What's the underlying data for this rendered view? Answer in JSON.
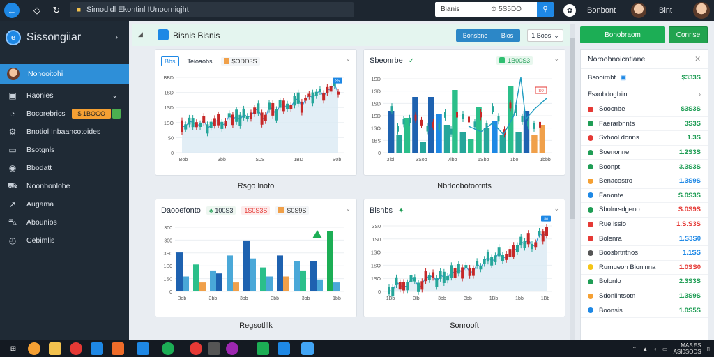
{
  "topbar": {
    "url": "Simodidl Ekontinl IUnoorniqjht",
    "search_placeholder": "Bianis",
    "search_value": "5S5DO",
    "right_label_1": "Bonbont",
    "right_label_2": "Bint"
  },
  "sidebar": {
    "brand": "Sissongiiar",
    "items": [
      {
        "label": "Nonooitohi",
        "icon": "avatar"
      },
      {
        "label": "Raonies",
        "icon": "briefcase-icon"
      },
      {
        "label": "Bocorebrics",
        "icon": "chart-icon",
        "badge": "$ 1BOGO"
      },
      {
        "label": "Bnotiol Inbaancotoides",
        "icon": "settings-icon"
      },
      {
        "label": "Bsotgnls",
        "icon": "monitor-icon"
      },
      {
        "label": "Bbodatt",
        "icon": "globe-icon"
      },
      {
        "label": "Noonbonlobe",
        "icon": "truck-icon"
      },
      {
        "label": "Augama",
        "icon": "rocket-icon"
      },
      {
        "label": "Abounios",
        "icon": "car-icon"
      },
      {
        "label": "Cebimlis",
        "icon": "clock-icon"
      }
    ]
  },
  "main": {
    "title": "Bisnis Bisnis",
    "pill_a": "Bonsbne",
    "pill_b": "Bios",
    "dropdown": "1 Boos"
  },
  "cards": [
    {
      "chip1": "Bbs",
      "chip2": "Teioaobs",
      "chip3": "$ODD3S",
      "yticks": [
        "BBD",
        "1SD",
        "1SD",
        "1SO",
        "S0",
        "0"
      ],
      "xticks": [
        "Bob",
        "3bb",
        "S0S",
        "1BD",
        "S0b"
      ],
      "caption": "Rsgo lnoto",
      "tag": "S5"
    },
    {
      "title": "Sbeonrbe",
      "chip1": "1B00S3",
      "yticks": [
        "1SD",
        "1SD",
        "1SD",
        "1SD",
        "1SO",
        "1BS",
        "0"
      ],
      "xticks": [
        "3lbl",
        "3Sob",
        "7lbb",
        "1Sbb",
        "1bo",
        "1bbb"
      ],
      "caption": "Nbrloobotootnfs",
      "tag": "S0"
    },
    {
      "title": "Daooefonto",
      "chip1": "100S3",
      "chip2": "1S0S3S",
      "chip3": "S0S9S",
      "yticks": [
        "300",
        "300",
        "3S0",
        "1S0",
        "1S0",
        "0"
      ],
      "xticks": [
        "Bob",
        "3bb",
        "3bb",
        "3bb",
        "3bb",
        "1bb"
      ],
      "caption": "Regsotlllk"
    },
    {
      "title": "Bisnbs",
      "yticks": [
        "3S0",
        "1S0",
        "1SO",
        "1SO",
        "1SO",
        "0"
      ],
      "xticks": [
        "1Bb",
        "3lb",
        "3bb",
        "3bb",
        "1Bb",
        "1bb",
        "1Bb"
      ],
      "caption": "Sonrooft",
      "tag": "S0"
    }
  ],
  "rightpanel": {
    "btn1": "Bonobraom",
    "btn2": "Conrise",
    "header": "Noroobnoicntiane",
    "sub1_label": "Bsooirnbt",
    "sub1_value": "$333S",
    "sub2_label": "Fsxobdogbiin",
    "rows": [
      {
        "label": "Soocnbe",
        "value": "$3S3S",
        "color": "#e53935",
        "vcolor": "#1f9d55"
      },
      {
        "label": "Faerarbnnts",
        "value": "3S3S",
        "color": "#1f9d55",
        "vcolor": "#1f9d55"
      },
      {
        "label": "Svbool donns",
        "value": "1.3S",
        "color": "#e53935",
        "vcolor": "#1f9d55"
      },
      {
        "label": "Soenonne",
        "value": "1.2S3S",
        "color": "#1f9d55",
        "vcolor": "#1f9d55"
      },
      {
        "label": "Boonpt",
        "value": "3.3S3S",
        "color": "#1f9d55",
        "vcolor": "#1f9d55"
      },
      {
        "label": "Benacostro",
        "value": "1.3S9S",
        "color": "#f5a033",
        "vcolor": "#1e88e5"
      },
      {
        "label": "Fanonte",
        "value": "S.0S3S",
        "color": "#1e88e5",
        "vcolor": "#1f9d55"
      },
      {
        "label": "Sbolnrsdgeno",
        "value": "S.0S9S",
        "color": "#1f9d55",
        "vcolor": "#e53935"
      },
      {
        "label": "Rue lsslo",
        "value": "1.S.S3S",
        "color": "#e53935",
        "vcolor": "#e53935"
      },
      {
        "label": "Bolenra",
        "value": "1.S3S0",
        "color": "#e53935",
        "vcolor": "#1e88e5"
      },
      {
        "label": "Boosbrtntnos",
        "value": "1.1SS",
        "color": "#555555",
        "vcolor": "#1e88e5"
      },
      {
        "label": "Rurnueon Bionlnna",
        "value": "1.0SS0",
        "color": "#f5c518",
        "vcolor": "#e53935"
      },
      {
        "label": "Bolonlo",
        "value": "2.3S3S",
        "color": "#1f9d55",
        "vcolor": "#1f9d55"
      },
      {
        "label": "Sdonlintsotn",
        "value": "1.3S9S",
        "color": "#f5a033",
        "vcolor": "#1f9d55"
      },
      {
        "label": "Boonsis",
        "value": "1.0S5S",
        "color": "#1e88e5",
        "vcolor": "#1f9d55"
      }
    ]
  },
  "taskbar": {
    "time": "MAS 5S",
    "date": "ASI0SODS"
  },
  "colors": {
    "accent": "#1e88e5",
    "green": "#1cae55",
    "red": "#e53935",
    "sidebar_bg": "#1f2a35"
  }
}
